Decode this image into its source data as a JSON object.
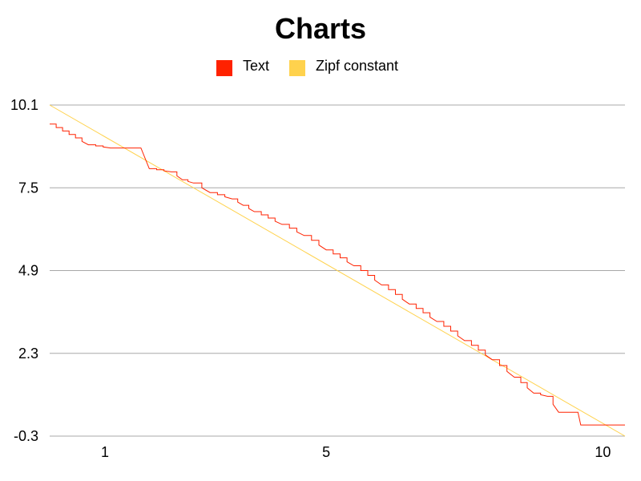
{
  "chart_data": {
    "type": "line",
    "title": "Charts",
    "legend": {
      "placement": "top-center"
    },
    "grid": {
      "horizontal": true,
      "vertical": false
    },
    "ylim": [
      -0.3,
      10.1
    ],
    "y_ticks": [
      "10.1",
      "7.5",
      "4.9",
      "2.3",
      "-0.3"
    ],
    "y_tick_values": [
      10.1,
      7.5,
      4.9,
      2.3,
      -0.3
    ],
    "x_ticks": [
      "1",
      "5",
      "10"
    ],
    "x_tick_values": [
      1,
      5,
      10
    ],
    "xlim": [
      0.0,
      10.4
    ],
    "series": [
      {
        "name": "Text",
        "color": "#ff2200",
        "style": "step",
        "points": [
          [
            0.0,
            9.5
          ],
          [
            0.7,
            8.85
          ],
          [
            1.1,
            8.75
          ],
          [
            1.65,
            8.75
          ],
          [
            1.8,
            8.1
          ],
          [
            2.2,
            8.0
          ],
          [
            2.4,
            7.75
          ],
          [
            2.6,
            7.65
          ],
          [
            2.9,
            7.35
          ],
          [
            3.3,
            7.15
          ],
          [
            3.5,
            6.95
          ],
          [
            3.7,
            6.75
          ],
          [
            4.2,
            6.35
          ],
          [
            4.6,
            6.0
          ],
          [
            5.0,
            5.55
          ],
          [
            5.5,
            5.05
          ],
          [
            6.0,
            4.45
          ],
          [
            6.5,
            3.85
          ],
          [
            7.0,
            3.3
          ],
          [
            7.5,
            2.7
          ],
          [
            8.0,
            2.1
          ],
          [
            8.4,
            1.55
          ],
          [
            8.75,
            1.05
          ],
          [
            9.0,
            0.95
          ],
          [
            9.2,
            0.45
          ],
          [
            9.55,
            0.45
          ],
          [
            9.6,
            0.05
          ],
          [
            10.4,
            0.05
          ]
        ]
      },
      {
        "name": "Zipf constant",
        "color": "#ffd24d",
        "style": "line",
        "points": [
          [
            0.0,
            10.1
          ],
          [
            10.4,
            -0.3
          ]
        ]
      }
    ]
  }
}
